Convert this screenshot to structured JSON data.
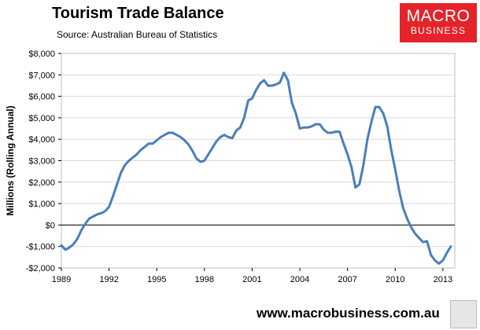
{
  "header": {
    "title": "Tourism Trade Balance",
    "source": "Source: Australian Bureau of Statistics"
  },
  "logo": {
    "line1": "MACRO",
    "line2": "BUSINESS"
  },
  "footer": {
    "website": "www.macrobusiness.com.au"
  },
  "colors": {
    "line": "#4a7ebb",
    "logo_red": "#e5232a",
    "grid": "#d9d9d9"
  },
  "chart_data": {
    "type": "line",
    "title": "Tourism Trade Balance",
    "ylabel": "Millions (Rolling Annual)",
    "xlabel": "",
    "xlim": [
      1989,
      2013.75
    ],
    "ylim": [
      -2000,
      8000
    ],
    "yticks": [
      8000,
      7000,
      6000,
      5000,
      4000,
      3000,
      2000,
      1000,
      0,
      -1000,
      -2000
    ],
    "ytick_labels": [
      "$8,000",
      "$7,000",
      "$6,000",
      "$5,000",
      "$4,000",
      "$3,000",
      "$2,000",
      "$1,000",
      "$0",
      "-$1,000",
      "-$2,000"
    ],
    "xticks": [
      1989,
      1992,
      1995,
      1998,
      2001,
      2004,
      2007,
      2010,
      2013
    ],
    "xtick_labels": [
      "1989",
      "1992",
      "1995",
      "1998",
      "2001",
      "2004",
      "2007",
      "2010",
      "2013"
    ],
    "grid": "horizontal",
    "series": [
      {
        "name": "",
        "x": [
          1989.0,
          1989.25,
          1989.5,
          1989.75,
          1990.0,
          1990.25,
          1990.5,
          1990.75,
          1991.0,
          1991.25,
          1991.5,
          1991.75,
          1992.0,
          1992.25,
          1992.5,
          1992.75,
          1993.0,
          1993.25,
          1993.5,
          1993.75,
          1994.0,
          1994.25,
          1994.5,
          1994.75,
          1995.0,
          1995.25,
          1995.5,
          1995.75,
          1996.0,
          1996.25,
          1996.5,
          1996.75,
          1997.0,
          1997.25,
          1997.5,
          1997.75,
          1998.0,
          1998.25,
          1998.5,
          1998.75,
          1999.0,
          1999.25,
          1999.5,
          1999.75,
          2000.0,
          2000.25,
          2000.5,
          2000.75,
          2001.0,
          2001.25,
          2001.5,
          2001.75,
          2002.0,
          2002.25,
          2002.5,
          2002.75,
          2003.0,
          2003.25,
          2003.5,
          2003.75,
          2004.0,
          2004.25,
          2004.5,
          2004.75,
          2005.0,
          2005.25,
          2005.5,
          2005.75,
          2006.0,
          2006.25,
          2006.5,
          2006.75,
          2007.0,
          2007.25,
          2007.5,
          2007.75,
          2008.0,
          2008.25,
          2008.5,
          2008.75,
          2009.0,
          2009.25,
          2009.5,
          2009.75,
          2010.0,
          2010.25,
          2010.5,
          2010.75,
          2011.0,
          2011.25,
          2011.5,
          2011.75,
          2012.0,
          2012.25,
          2012.5,
          2012.75,
          2013.0,
          2013.25,
          2013.5
        ],
        "values": [
          -950,
          -1150,
          -1050,
          -900,
          -650,
          -250,
          50,
          300,
          400,
          500,
          550,
          650,
          850,
          1350,
          1900,
          2450,
          2800,
          3000,
          3150,
          3300,
          3500,
          3650,
          3800,
          3800,
          3950,
          4100,
          4200,
          4300,
          4300,
          4200,
          4100,
          3950,
          3750,
          3450,
          3100,
          2950,
          3000,
          3300,
          3600,
          3900,
          4100,
          4200,
          4100,
          4050,
          4400,
          4550,
          5000,
          5800,
          5900,
          6300,
          6600,
          6750,
          6500,
          6500,
          6550,
          6650,
          7100,
          6750,
          5700,
          5200,
          4500,
          4550,
          4550,
          4600,
          4700,
          4700,
          4450,
          4300,
          4300,
          4350,
          4350,
          3800,
          3300,
          2700,
          1750,
          1900,
          2800,
          4000,
          4800,
          5500,
          5500,
          5200,
          4600,
          3500,
          2600,
          1600,
          800,
          300,
          -100,
          -400,
          -600,
          -800,
          -750,
          -1400,
          -1650,
          -1800,
          -1650,
          -1300,
          -1000
        ]
      }
    ]
  }
}
